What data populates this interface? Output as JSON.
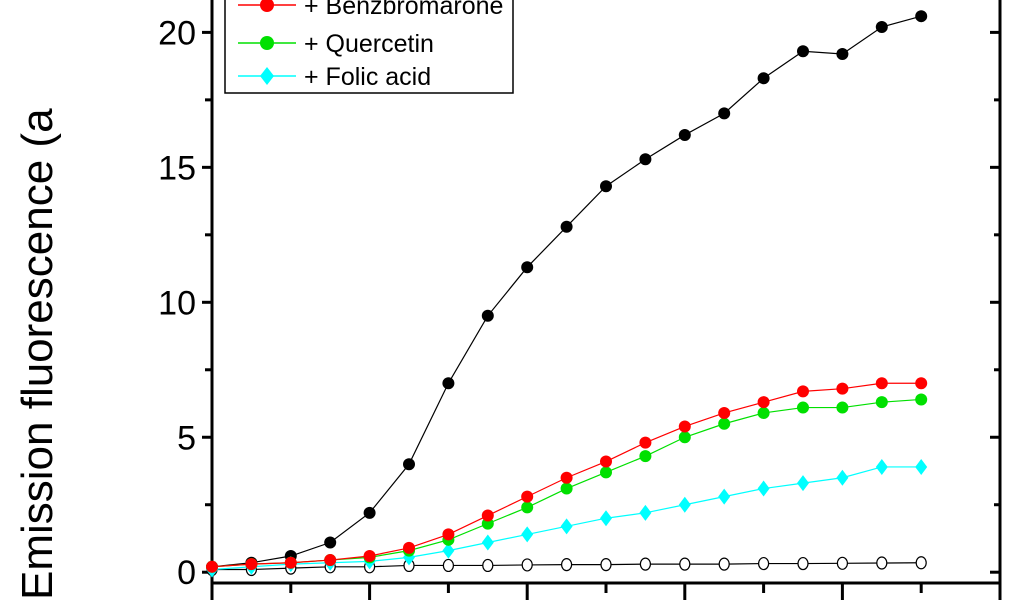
{
  "chart_data": {
    "type": "scatter",
    "title": "",
    "xlabel": "",
    "ylabel": "Emission fluorescence (a",
    "xlim": [
      0,
      100
    ],
    "ylim": [
      -0.4,
      21.2
    ],
    "yticks": [
      0,
      5,
      10,
      15,
      20
    ],
    "ytick_labels": [
      "0",
      "5",
      "10",
      "15",
      "20"
    ],
    "xticks_major": [
      0,
      20,
      40,
      60,
      80,
      100
    ],
    "grid": false,
    "legend_position": "top-left",
    "x": [
      0,
      5,
      10,
      15,
      20,
      25,
      30,
      35,
      40,
      45,
      50,
      55,
      60,
      65,
      70,
      75,
      80,
      85,
      90
    ],
    "series": [
      {
        "name": "",
        "color": "#000000",
        "marker": "circle-filled",
        "in_legend": false,
        "values": [
          0.2,
          0.35,
          0.6,
          1.1,
          2.2,
          4.0,
          7.0,
          9.5,
          11.3,
          12.8,
          14.3,
          15.3,
          16.2,
          17.0,
          18.3,
          19.3,
          19.2,
          20.2,
          20.6
        ]
      },
      {
        "name": "+ Benzbromarone",
        "color": "#ff0000",
        "marker": "circle-filled",
        "in_legend": true,
        "values": [
          0.2,
          0.3,
          0.35,
          0.45,
          0.6,
          0.9,
          1.4,
          2.1,
          2.8,
          3.5,
          4.1,
          4.8,
          5.4,
          5.9,
          6.3,
          6.7,
          6.8,
          7.0,
          7.0
        ]
      },
      {
        "name": "+ Quercetin",
        "color": "#00e000",
        "marker": "circle-filled",
        "in_legend": true,
        "values": [
          0.2,
          0.3,
          0.35,
          0.45,
          0.55,
          0.8,
          1.2,
          1.8,
          2.4,
          3.1,
          3.7,
          4.3,
          5.0,
          5.5,
          5.9,
          6.1,
          6.1,
          6.3,
          6.4
        ]
      },
      {
        "name": "+ Folic acid",
        "color": "#00ffff",
        "marker": "diamond",
        "in_legend": true,
        "values": [
          0.1,
          0.2,
          0.3,
          0.35,
          0.4,
          0.55,
          0.8,
          1.1,
          1.4,
          1.7,
          2.0,
          2.2,
          2.5,
          2.8,
          3.1,
          3.3,
          3.5,
          3.9,
          3.9
        ]
      },
      {
        "name": "",
        "color": "#000000",
        "marker": "circle-open",
        "in_legend": false,
        "values": [
          0.1,
          0.1,
          0.15,
          0.2,
          0.2,
          0.25,
          0.25,
          0.25,
          0.27,
          0.28,
          0.28,
          0.3,
          0.3,
          0.3,
          0.32,
          0.32,
          0.33,
          0.34,
          0.35
        ]
      }
    ]
  }
}
